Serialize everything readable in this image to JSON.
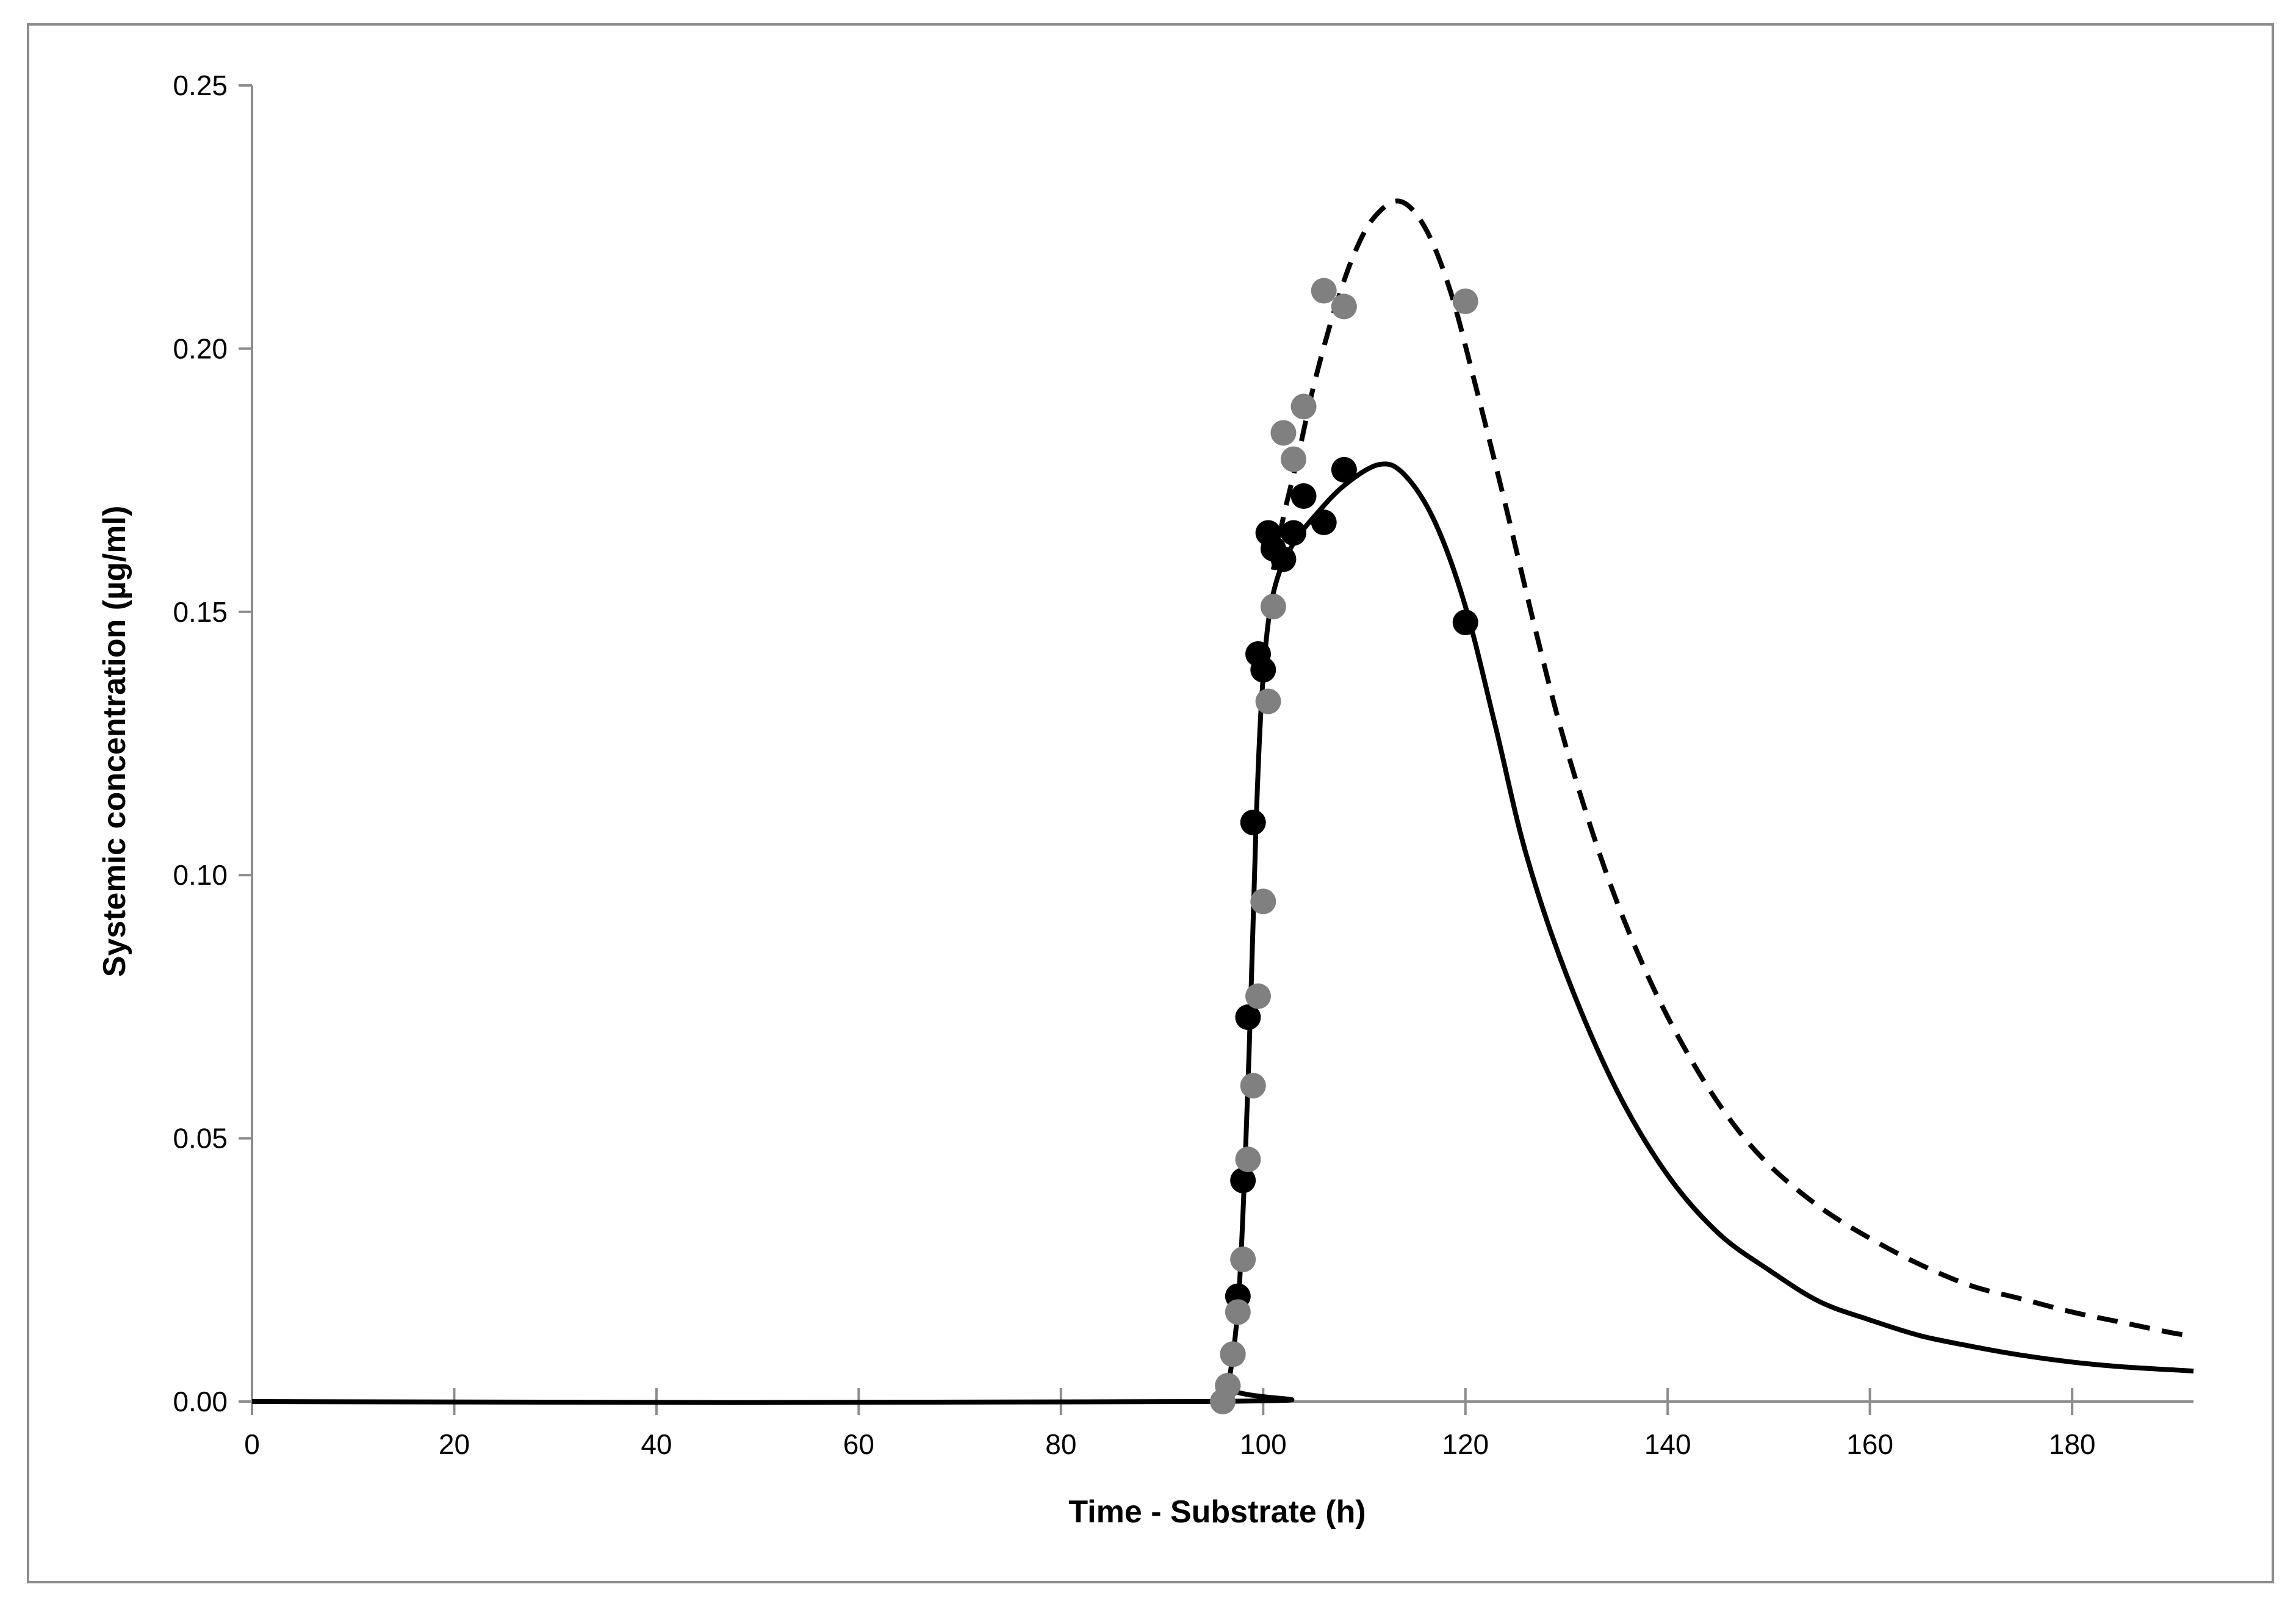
{
  "chart_data": {
    "type": "scatter",
    "xlabel": "Time - Substrate (h)",
    "ylabel": "Systemic concentration (µg/ml)",
    "xlim": [
      0,
      192
    ],
    "ylim": [
      0,
      0.25
    ],
    "x_ticks": [
      "0",
      "20",
      "40",
      "60",
      "80",
      "100",
      "120",
      "140",
      "160",
      "180"
    ],
    "y_ticks": [
      "0.00",
      "0.05",
      "0.10",
      "0.15",
      "0.20",
      "0.25"
    ],
    "grid": false,
    "legend": "none",
    "series": [
      {
        "type": "line",
        "style": "solid",
        "color": "#000000",
        "points": [
          [
            0,
            0
          ],
          [
            95.5,
            0
          ],
          [
            96.5,
            0.003
          ],
          [
            97.5,
            0.018
          ],
          [
            98.2,
            0.045
          ],
          [
            98.8,
            0.078
          ],
          [
            99.3,
            0.11
          ],
          [
            99.8,
            0.132
          ],
          [
            100.5,
            0.148
          ],
          [
            101.5,
            0.157
          ],
          [
            103,
            0.163
          ],
          [
            105,
            0.168
          ],
          [
            108,
            0.174
          ],
          [
            111.5,
            0.178
          ],
          [
            114,
            0.176
          ],
          [
            117,
            0.167
          ],
          [
            120,
            0.151
          ],
          [
            123,
            0.128
          ],
          [
            126,
            0.104
          ],
          [
            130,
            0.081
          ],
          [
            135,
            0.059
          ],
          [
            140,
            0.043
          ],
          [
            145,
            0.032
          ],
          [
            150,
            0.025
          ],
          [
            155,
            0.019
          ],
          [
            160,
            0.0155
          ],
          [
            165,
            0.0125
          ],
          [
            170,
            0.0105
          ],
          [
            175,
            0.0088
          ],
          [
            180,
            0.0075
          ],
          [
            185,
            0.0066
          ],
          [
            192,
            0.0058
          ]
        ]
      },
      {
        "type": "line",
        "style": "dashed",
        "color": "#000000",
        "points": [
          [
            101,
            0.158
          ],
          [
            102,
            0.168
          ],
          [
            103.5,
            0.18
          ],
          [
            105,
            0.193
          ],
          [
            107,
            0.207
          ],
          [
            109,
            0.218
          ],
          [
            111,
            0.225
          ],
          [
            113.5,
            0.228
          ],
          [
            116,
            0.223
          ],
          [
            118.5,
            0.211
          ],
          [
            121,
            0.193
          ],
          [
            124,
            0.17
          ],
          [
            127,
            0.146
          ],
          [
            130,
            0.124
          ],
          [
            134,
            0.1
          ],
          [
            138,
            0.081
          ],
          [
            142,
            0.066
          ],
          [
            146,
            0.054
          ],
          [
            150,
            0.045
          ],
          [
            155,
            0.037
          ],
          [
            160,
            0.031
          ],
          [
            165,
            0.026
          ],
          [
            170,
            0.022
          ],
          [
            175,
            0.0195
          ],
          [
            180,
            0.017
          ],
          [
            185,
            0.015
          ],
          [
            190,
            0.013
          ],
          [
            192,
            0.0125
          ]
        ]
      },
      {
        "type": "scatter",
        "color": "#000000",
        "points": [
          [
            96.5,
            0.003
          ],
          [
            97,
            0.009
          ],
          [
            97.5,
            0.02
          ],
          [
            98,
            0.042
          ],
          [
            98.5,
            0.073
          ],
          [
            99,
            0.11
          ],
          [
            99.5,
            0.142
          ],
          [
            100,
            0.139
          ],
          [
            100.5,
            0.165
          ],
          [
            101,
            0.162
          ],
          [
            102,
            0.16
          ],
          [
            103,
            0.165
          ],
          [
            104,
            0.172
          ],
          [
            106,
            0.167
          ],
          [
            108,
            0.177
          ],
          [
            120,
            0.148
          ]
        ]
      },
      {
        "type": "scatter",
        "color": "#808080",
        "points": [
          [
            96,
            0.0
          ],
          [
            96.5,
            0.003
          ],
          [
            97,
            0.009
          ],
          [
            97.5,
            0.017
          ],
          [
            98,
            0.027
          ],
          [
            98.5,
            0.046
          ],
          [
            99,
            0.06
          ],
          [
            99.5,
            0.077
          ],
          [
            100,
            0.095
          ],
          [
            100.5,
            0.133
          ],
          [
            101,
            0.151
          ],
          [
            102,
            0.184
          ],
          [
            103,
            0.179
          ],
          [
            104,
            0.189
          ],
          [
            106,
            0.211
          ],
          [
            108,
            0.208
          ],
          [
            120,
            0.209
          ]
        ]
      }
    ]
  }
}
